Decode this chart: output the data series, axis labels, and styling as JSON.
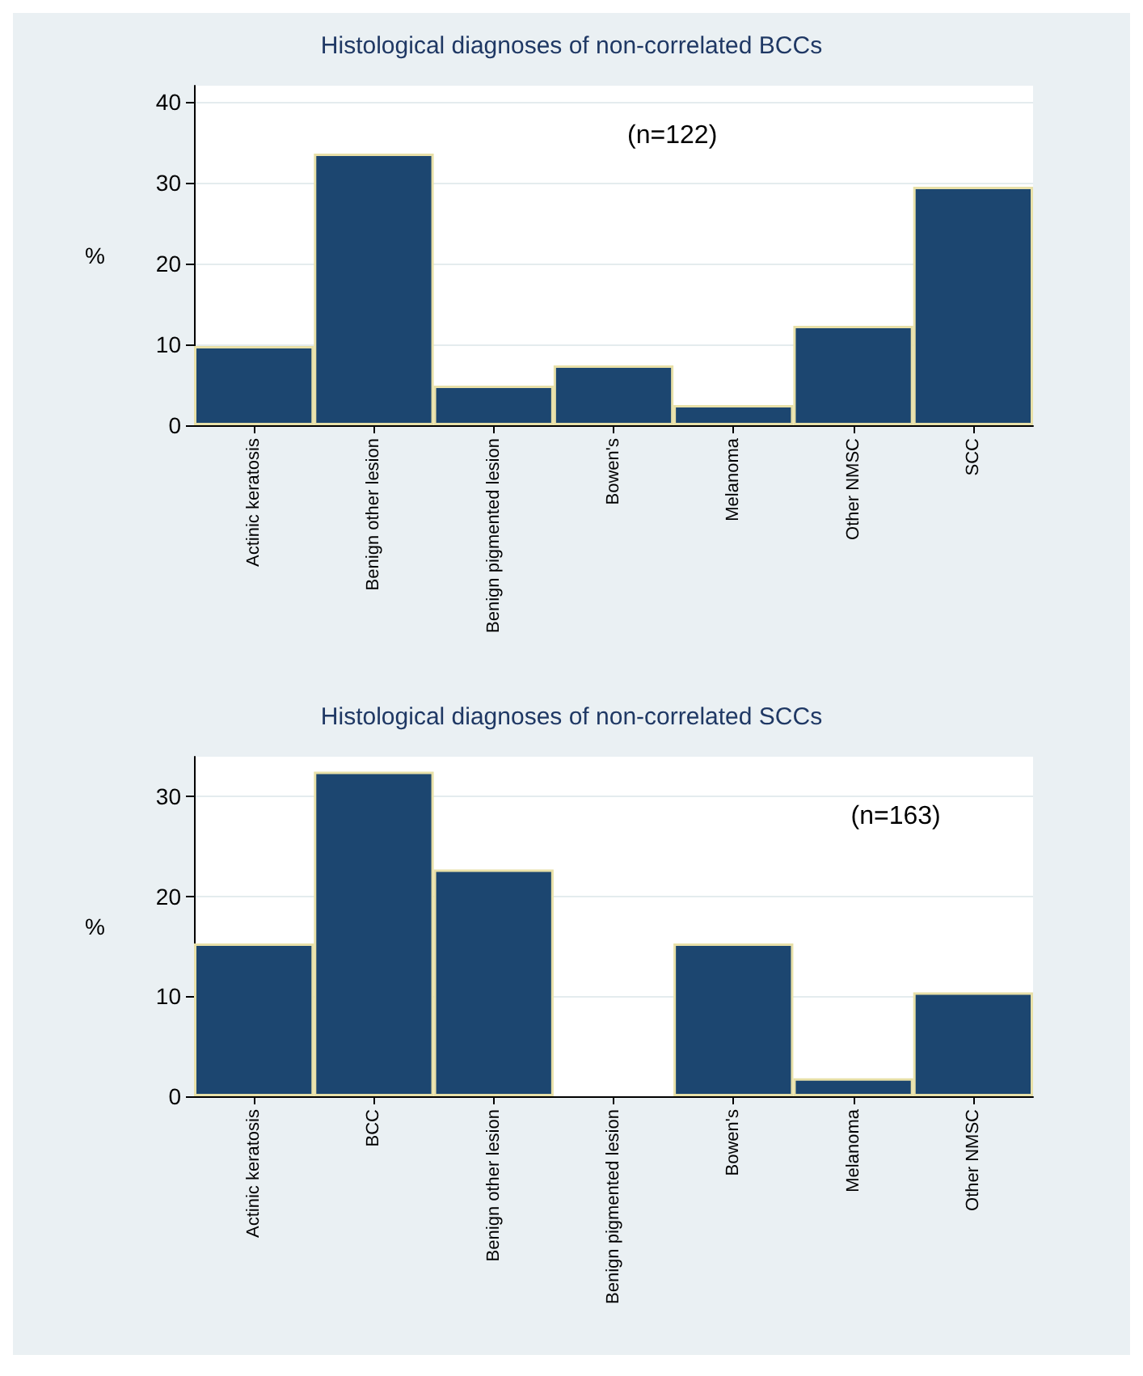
{
  "chart_data": [
    {
      "type": "bar",
      "title": "Histological diagnoses of non-correlated BCCs",
      "ylabel": "%",
      "annotations": [
        "(n=122)"
      ],
      "categories": [
        "Actinic keratosis",
        "Benign other lesion",
        "Benign pigmented lesion",
        "Bowen's",
        "Melanoma",
        "Other NMSC",
        "SCC"
      ],
      "values": [
        9.8,
        33.6,
        4.9,
        7.4,
        2.5,
        12.3,
        29.5
      ],
      "color": "#1c4670",
      "ylim": [
        0,
        42
      ],
      "yticks": [
        0,
        10,
        20,
        30,
        40
      ],
      "grid": "y"
    },
    {
      "type": "bar",
      "title": "Histological diagnoses of non-correlated SCCs",
      "ylabel": "%",
      "annotations": [
        "(n=163)"
      ],
      "categories": [
        "Actinic keratosis",
        "BCC",
        "Benign other lesion",
        "Benign pigmented lesion",
        "Bowen's",
        "Melanoma",
        "Other NMSC"
      ],
      "values": [
        15.3,
        32.5,
        22.7,
        0,
        15.3,
        1.8,
        10.4
      ],
      "color": "#1c4670",
      "ylim": [
        0,
        34
      ],
      "yticks": [
        0,
        10,
        20,
        30
      ],
      "grid": "y"
    }
  ]
}
